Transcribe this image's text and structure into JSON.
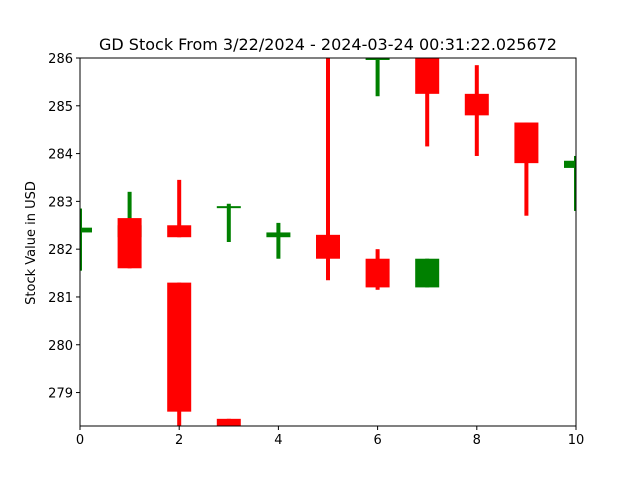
{
  "chart_data": {
    "type": "candlestick",
    "title": "GD Stock From 3/22/2024 - 2024-03-24 00:31:22.025672",
    "xlabel": "",
    "ylabel": "Stock Value in USD",
    "xlim": [
      0,
      10
    ],
    "ylim": [
      278.3,
      286.0
    ],
    "xticks": [
      0,
      2,
      4,
      6,
      8,
      10
    ],
    "yticks": [
      279,
      280,
      281,
      282,
      283,
      284,
      285,
      286
    ],
    "grid": false,
    "colors": {
      "up": "#008000",
      "down": "#ff0000",
      "axis": "#000000"
    },
    "candles": [
      {
        "x": 0,
        "open": 282.35,
        "close": 282.45,
        "high": 282.85,
        "low": 281.55,
        "direction": "up"
      },
      {
        "x": 1,
        "open": 282.25,
        "close": 282.5,
        "high": 283.2,
        "low": 282.25,
        "direction": "up"
      },
      {
        "x": 1,
        "open": 282.65,
        "close": 281.6,
        "high": 282.65,
        "low": 281.6,
        "direction": "down"
      },
      {
        "x": 2,
        "open": 282.5,
        "close": 282.25,
        "high": 283.45,
        "low": 282.25,
        "direction": "down"
      },
      {
        "x": 2,
        "open": 281.3,
        "close": 278.6,
        "high": 281.3,
        "low": 278.3,
        "direction": "down"
      },
      {
        "x": 3,
        "open": 282.9,
        "close": 282.9,
        "high": 282.95,
        "low": 282.15,
        "direction": "up"
      },
      {
        "x": 3,
        "open": 278.45,
        "close": 278.3,
        "high": 278.45,
        "low": 278.3,
        "direction": "down"
      },
      {
        "x": 4,
        "open": 282.25,
        "close": 282.35,
        "high": 282.55,
        "low": 281.8,
        "direction": "up"
      },
      {
        "x": 5,
        "open": 282.3,
        "close": 281.8,
        "high": 286.0,
        "low": 281.35,
        "direction": "down"
      },
      {
        "x": 6,
        "open": 286.0,
        "close": 286.0,
        "high": 286.0,
        "low": 285.2,
        "direction": "up"
      },
      {
        "x": 6,
        "open": 281.8,
        "close": 281.2,
        "high": 282.0,
        "low": 281.15,
        "direction": "down"
      },
      {
        "x": 7,
        "open": 286.0,
        "close": 285.25,
        "high": 286.0,
        "low": 284.15,
        "direction": "down"
      },
      {
        "x": 7,
        "open": 281.2,
        "close": 281.8,
        "high": 281.8,
        "low": 281.2,
        "direction": "up"
      },
      {
        "x": 8,
        "open": 285.25,
        "close": 284.8,
        "high": 285.85,
        "low": 283.95,
        "direction": "down"
      },
      {
        "x": 9,
        "open": 284.65,
        "close": 283.8,
        "high": 284.65,
        "low": 282.7,
        "direction": "down"
      },
      {
        "x": 10,
        "open": 283.7,
        "close": 283.85,
        "high": 283.95,
        "low": 282.8,
        "direction": "up"
      }
    ]
  }
}
